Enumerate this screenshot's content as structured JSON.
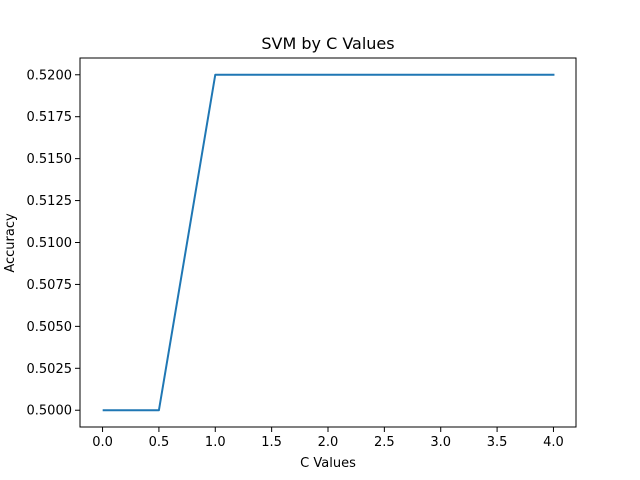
{
  "chart_data": {
    "type": "line",
    "title": "SVM by C Values",
    "xlabel": "C Values",
    "ylabel": "Accuracy",
    "xlim": [
      -0.2,
      4.2
    ],
    "ylim": [
      0.499,
      0.521
    ],
    "x_ticks": [
      0.0,
      0.5,
      1.0,
      1.5,
      2.0,
      2.5,
      3.0,
      3.5,
      4.0
    ],
    "x_tick_labels": [
      "0.0",
      "0.5",
      "1.0",
      "1.5",
      "2.0",
      "2.5",
      "3.0",
      "3.5",
      "4.0"
    ],
    "y_ticks": [
      0.5,
      0.5025,
      0.505,
      0.5075,
      0.51,
      0.5125,
      0.515,
      0.5175,
      0.52
    ],
    "y_tick_labels": [
      "0.5000",
      "0.5025",
      "0.5050",
      "0.5075",
      "0.5100",
      "0.5125",
      "0.5150",
      "0.5175",
      "0.5200"
    ],
    "grid": false,
    "series": [
      {
        "color": "#1f77b4",
        "x": [
          0.01,
          0.5,
          1.0,
          2.0,
          3.0,
          4.0
        ],
        "y": [
          0.5,
          0.5,
          0.52,
          0.52,
          0.52,
          0.52
        ]
      }
    ]
  }
}
